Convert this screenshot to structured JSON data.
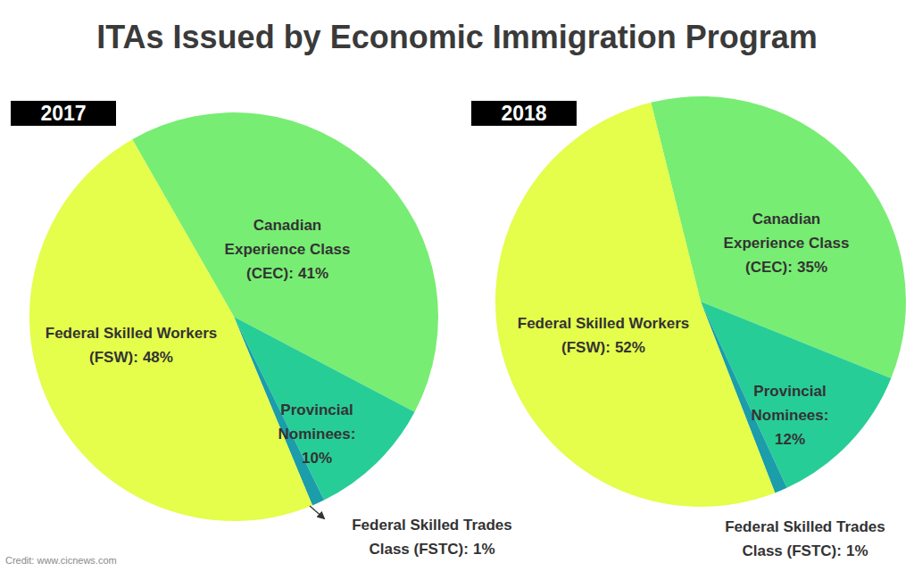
{
  "title": "ITAs Issued by Economic Immigration Program",
  "credit": "Credit: www.cicnews.com",
  "chart_data": [
    {
      "type": "pie",
      "title": "2017",
      "categories": [
        "Canadian Experience Class (CEC):",
        "Provincial Nominees:",
        "Federal Skilled Trades Class (FSTC):",
        "Federal Skilled Workers (FSW):"
      ],
      "values": [
        41,
        10,
        1,
        48
      ],
      "value_labels": [
        "41%",
        "10%",
        "1%",
        "48%"
      ],
      "colors": [
        "#78ed73",
        "#27cd97",
        "#1b9daa",
        "#e5fd4b"
      ],
      "data_labels": true
    },
    {
      "type": "pie",
      "title": "2018",
      "categories": [
        "Canadian Experience Class (CEC):",
        "Provincial Nominees:",
        "Federal Skilled Trades Class (FSTC):",
        "Federal Skilled Workers (FSW):"
      ],
      "values": [
        35,
        12,
        1,
        52
      ],
      "value_labels": [
        "35%",
        "12%",
        "1%",
        "52%"
      ],
      "colors": [
        "#78ed73",
        "#27cd97",
        "#1b9daa",
        "#e5fd4b"
      ],
      "data_labels": true
    }
  ]
}
